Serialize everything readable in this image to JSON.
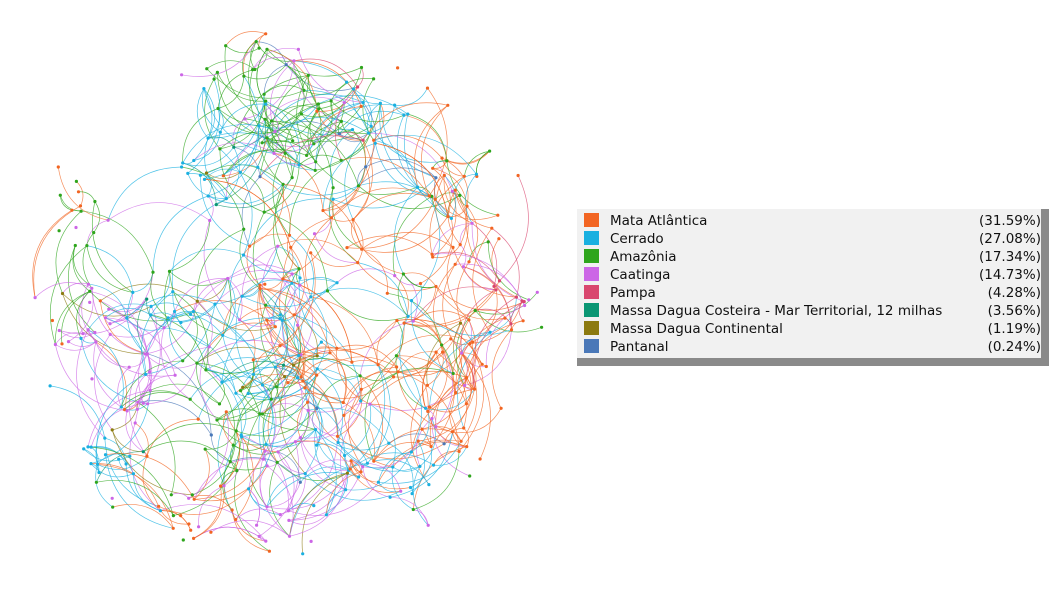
{
  "legend": {
    "items": [
      {
        "label": "Mata Atlântica",
        "percent": "(31.59%)",
        "color": "#f26522"
      },
      {
        "label": "Cerrado",
        "percent": "(27.08%)",
        "color": "#1ab0e0"
      },
      {
        "label": "Amazônia",
        "percent": "(17.34%)",
        "color": "#2ea51c"
      },
      {
        "label": "Caatinga",
        "percent": "(14.73%)",
        "color": "#cc66e6"
      },
      {
        "label": "Pampa",
        "percent": "(4.28%)",
        "color": "#d9476f"
      },
      {
        "label": "Massa Dagua Costeira - Mar Territorial, 12 milhas",
        "percent": "(3.56%)",
        "color": "#0a9673"
      },
      {
        "label": "Massa Dagua Continental",
        "percent": "(1.19%)",
        "color": "#8c7a10"
      },
      {
        "label": "Pantanal",
        "percent": "(0.24%)",
        "color": "#4a78b8"
      }
    ]
  },
  "network": {
    "description_colors": [
      "#f26522",
      "#1ab0e0",
      "#2ea51c",
      "#cc66e6",
      "#d9476f",
      "#0a9673",
      "#8c7a10",
      "#4a78b8"
    ]
  }
}
